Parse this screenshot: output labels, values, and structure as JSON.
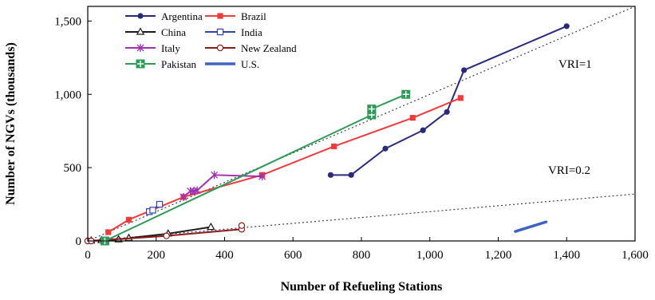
{
  "chart_data": {
    "type": "line",
    "xlabel": "Number of Refueling Stations",
    "ylabel": "Number of NGVs (thousands)",
    "xlim": [
      0,
      1600
    ],
    "ylim": [
      0,
      1600
    ],
    "x_ticks": [
      "0",
      "200",
      "400",
      "600",
      "800",
      "1,000",
      "1,200",
      "1,400",
      "1,600"
    ],
    "y_ticks": [
      "0",
      "500",
      "1,000",
      "1,500"
    ],
    "grid": false,
    "legend_position": "top-left",
    "reference_lines": [
      {
        "label": "VRI=1",
        "slope": 1,
        "style": "dotted"
      },
      {
        "label": "VRI=0.2",
        "slope": 0.2,
        "style": "dotted"
      }
    ],
    "series": [
      {
        "name": "Argentina",
        "color": "#2a2a7a",
        "marker": "circle",
        "x": [
          710,
          770,
          870,
          980,
          1050,
          1100,
          1400
        ],
        "y": [
          450,
          450,
          630,
          755,
          880,
          1165,
          1465
        ]
      },
      {
        "name": "Brazil",
        "color": "#ee3b3b",
        "marker": "square",
        "x": [
          60,
          120,
          280,
          510,
          720,
          950,
          1090
        ],
        "y": [
          60,
          145,
          300,
          450,
          645,
          840,
          975
        ]
      },
      {
        "name": "China",
        "color": "#1a1a1a",
        "marker": "triangle-open",
        "x": [
          10,
          40,
          90,
          120,
          235,
          360
        ],
        "y": [
          2,
          5,
          10,
          20,
          50,
          95
        ]
      },
      {
        "name": "India",
        "color": "#3344aa",
        "marker": "square-open",
        "x": [
          180,
          190,
          210
        ],
        "y": [
          200,
          210,
          250
        ]
      },
      {
        "name": "Italy",
        "color": "#a030b0",
        "marker": "star",
        "x": [
          280,
          300,
          310,
          320,
          370,
          510
        ],
        "y": [
          300,
          340,
          340,
          345,
          450,
          440
        ]
      },
      {
        "name": "New Zealand",
        "color": "#8b1a1a",
        "marker": "circle-open",
        "x": [
          0,
          10,
          230,
          450,
          450
        ],
        "y": [
          0,
          0,
          35,
          80,
          105
        ]
      },
      {
        "name": "Pakistan",
        "color": "#2e9a58",
        "marker": "plus-square",
        "x": [
          50,
          830,
          830,
          930
        ],
        "y": [
          0,
          860,
          900,
          1000
        ]
      },
      {
        "name": "U.S.",
        "color": "#3c62c4",
        "marker": "none",
        "x": [
          1250,
          1340
        ],
        "y": [
          65,
          130
        ]
      }
    ]
  }
}
